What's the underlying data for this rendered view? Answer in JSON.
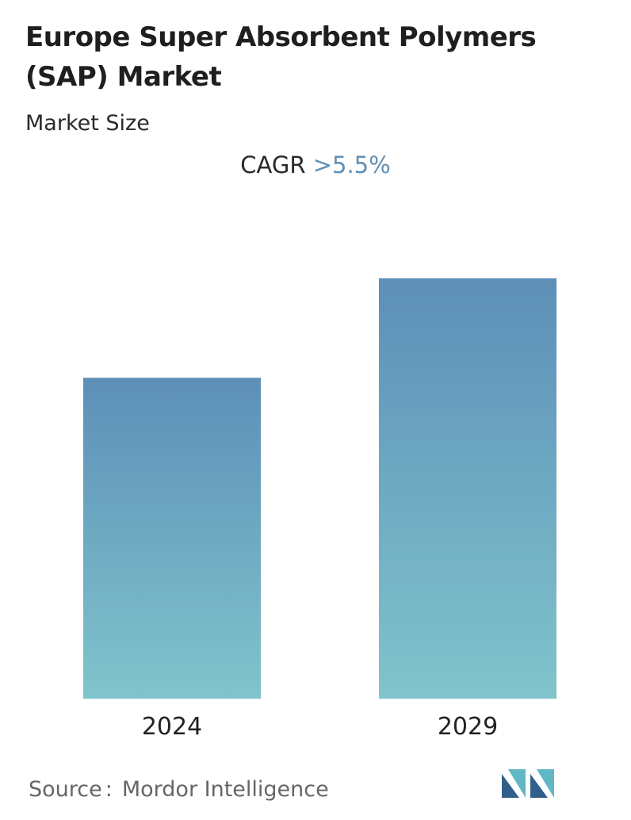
{
  "title": "Europe Super Absorbent Polymers (SAP) Market",
  "subtitle": "Market Size",
  "cagr": {
    "label": "CAGR",
    "value": ">5.5%"
  },
  "chart_data": {
    "type": "bar",
    "categories": [
      "2024",
      "2029"
    ],
    "values": [
      1.0,
      1.31
    ],
    "ylim": [
      0,
      1.31
    ],
    "grid": false,
    "legend": "none",
    "colors": {
      "bar_top": "#5d8fb8",
      "bar_bottom": "#80c4cc"
    }
  },
  "source": {
    "label": "Source",
    "separator": ":",
    "name": "Mordor Intelligence"
  },
  "logo": {
    "icon": "mordor-intelligence-logo-icon",
    "colors": [
      "#2f5f8a",
      "#5fb8c4"
    ]
  }
}
